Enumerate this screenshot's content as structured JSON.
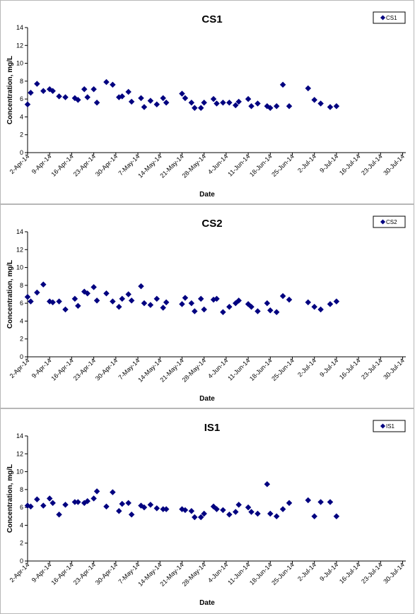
{
  "colors": {
    "marker": "#000080",
    "axis": "#000000"
  },
  "chart_data": [
    {
      "type": "scatter",
      "title": "CS1",
      "xlabel": "Date",
      "ylabel": "Concentration, mg/L",
      "legend": {
        "entries": [
          "CS1"
        ],
        "placement": "top-right"
      },
      "ylim": [
        0,
        14
      ],
      "yticks": [
        "0",
        "2",
        "4",
        "6",
        "8",
        "10",
        "12",
        "14"
      ],
      "xlim": [
        "2014-04-02",
        "2014-07-31"
      ],
      "xticks": [
        "2-Apr-14",
        "9-Apr-14",
        "16-Apr-14",
        "23-Apr-14",
        "30-Apr-14",
        "7-May-14",
        "14-May-14",
        "21-May-14",
        "28-May-14",
        "4-Jun-14",
        "11-Jun-14",
        "18-Jun-14",
        "25-Jun-14",
        "2-Jul-14",
        "9-Jul-14",
        "16-Jul-14",
        "23-Jul-14",
        "30-Jul-14"
      ],
      "grid": false,
      "series": [
        {
          "name": "CS1",
          "points": [
            {
              "x": "2014-04-02",
              "y": 5.4
            },
            {
              "x": "2014-04-03",
              "y": 6.7
            },
            {
              "x": "2014-04-05",
              "y": 7.7
            },
            {
              "x": "2014-04-07",
              "y": 6.9
            },
            {
              "x": "2014-04-09",
              "y": 7.1
            },
            {
              "x": "2014-04-10",
              "y": 6.9
            },
            {
              "x": "2014-04-12",
              "y": 6.3
            },
            {
              "x": "2014-04-14",
              "y": 6.2
            },
            {
              "x": "2014-04-17",
              "y": 6.1
            },
            {
              "x": "2014-04-18",
              "y": 5.9
            },
            {
              "x": "2014-04-20",
              "y": 7.1
            },
            {
              "x": "2014-04-21",
              "y": 6.2
            },
            {
              "x": "2014-04-23",
              "y": 7.1
            },
            {
              "x": "2014-04-24",
              "y": 5.6
            },
            {
              "x": "2014-04-27",
              "y": 7.9
            },
            {
              "x": "2014-04-29",
              "y": 7.6
            },
            {
              "x": "2014-05-01",
              "y": 6.2
            },
            {
              "x": "2014-05-02",
              "y": 6.3
            },
            {
              "x": "2014-05-04",
              "y": 6.8
            },
            {
              "x": "2014-05-05",
              "y": 5.7
            },
            {
              "x": "2014-05-08",
              "y": 6.1
            },
            {
              "x": "2014-05-09",
              "y": 5.1
            },
            {
              "x": "2014-05-11",
              "y": 5.8
            },
            {
              "x": "2014-05-13",
              "y": 5.4
            },
            {
              "x": "2014-05-15",
              "y": 6.1
            },
            {
              "x": "2014-05-16",
              "y": 5.6
            },
            {
              "x": "2014-05-21",
              "y": 6.6
            },
            {
              "x": "2014-05-22",
              "y": 6.1
            },
            {
              "x": "2014-05-24",
              "y": 5.6
            },
            {
              "x": "2014-05-25",
              "y": 5.0
            },
            {
              "x": "2014-05-27",
              "y": 5.0
            },
            {
              "x": "2014-05-28",
              "y": 5.6
            },
            {
              "x": "2014-05-31",
              "y": 6.0
            },
            {
              "x": "2014-06-01",
              "y": 5.5
            },
            {
              "x": "2014-06-03",
              "y": 5.6
            },
            {
              "x": "2014-06-05",
              "y": 5.6
            },
            {
              "x": "2014-06-07",
              "y": 5.3
            },
            {
              "x": "2014-06-08",
              "y": 5.7
            },
            {
              "x": "2014-06-11",
              "y": 6.0
            },
            {
              "x": "2014-06-12",
              "y": 5.2
            },
            {
              "x": "2014-06-14",
              "y": 5.5
            },
            {
              "x": "2014-06-17",
              "y": 5.2
            },
            {
              "x": "2014-06-18",
              "y": 5.0
            },
            {
              "x": "2014-06-20",
              "y": 5.2
            },
            {
              "x": "2014-06-22",
              "y": 7.6
            },
            {
              "x": "2014-06-24",
              "y": 5.2
            },
            {
              "x": "2014-06-30",
              "y": 7.2
            },
            {
              "x": "2014-07-02",
              "y": 5.9
            },
            {
              "x": "2014-07-04",
              "y": 5.5
            },
            {
              "x": "2014-07-07",
              "y": 5.1
            },
            {
              "x": "2014-07-09",
              "y": 5.2
            }
          ]
        }
      ]
    },
    {
      "type": "scatter",
      "title": "CS2",
      "xlabel": "Date",
      "ylabel": "Concentration, mg/L",
      "legend": {
        "entries": [
          "CS2"
        ],
        "placement": "top-right"
      },
      "ylim": [
        0,
        14
      ],
      "yticks": [
        "0",
        "2",
        "4",
        "6",
        "8",
        "10",
        "12",
        "14"
      ],
      "xlim": [
        "2014-04-02",
        "2014-07-31"
      ],
      "xticks": [
        "2-Apr-14",
        "9-Apr-14",
        "16-Apr-14",
        "23-Apr-14",
        "30-Apr-14",
        "7-May-14",
        "14-May-14",
        "21-May-14",
        "28-May-14",
        "4-Jun-14",
        "11-Jun-14",
        "18-Jun-14",
        "25-Jun-14",
        "2-Jul-14",
        "9-Jul-14",
        "16-Jul-14",
        "23-Jul-14",
        "30-Jul-14"
      ],
      "grid": false,
      "series": [
        {
          "name": "CS2",
          "points": [
            {
              "x": "2014-04-02",
              "y": 6.7
            },
            {
              "x": "2014-04-03",
              "y": 6.2
            },
            {
              "x": "2014-04-05",
              "y": 7.2
            },
            {
              "x": "2014-04-07",
              "y": 8.1
            },
            {
              "x": "2014-04-09",
              "y": 6.2
            },
            {
              "x": "2014-04-10",
              "y": 6.1
            },
            {
              "x": "2014-04-12",
              "y": 6.2
            },
            {
              "x": "2014-04-14",
              "y": 5.3
            },
            {
              "x": "2014-04-17",
              "y": 6.5
            },
            {
              "x": "2014-04-18",
              "y": 5.7
            },
            {
              "x": "2014-04-20",
              "y": 7.3
            },
            {
              "x": "2014-04-21",
              "y": 7.1
            },
            {
              "x": "2014-04-23",
              "y": 7.8
            },
            {
              "x": "2014-04-24",
              "y": 6.3
            },
            {
              "x": "2014-04-27",
              "y": 7.1
            },
            {
              "x": "2014-04-29",
              "y": 6.2
            },
            {
              "x": "2014-05-01",
              "y": 5.6
            },
            {
              "x": "2014-05-02",
              "y": 6.5
            },
            {
              "x": "2014-05-04",
              "y": 7.0
            },
            {
              "x": "2014-05-05",
              "y": 6.3
            },
            {
              "x": "2014-05-08",
              "y": 7.9
            },
            {
              "x": "2014-05-09",
              "y": 6.0
            },
            {
              "x": "2014-05-11",
              "y": 5.8
            },
            {
              "x": "2014-05-13",
              "y": 6.5
            },
            {
              "x": "2014-05-15",
              "y": 5.5
            },
            {
              "x": "2014-05-16",
              "y": 6.1
            },
            {
              "x": "2014-05-21",
              "y": 5.9
            },
            {
              "x": "2014-05-22",
              "y": 6.6
            },
            {
              "x": "2014-05-24",
              "y": 6.0
            },
            {
              "x": "2014-05-25",
              "y": 5.1
            },
            {
              "x": "2014-05-27",
              "y": 6.5
            },
            {
              "x": "2014-05-28",
              "y": 5.3
            },
            {
              "x": "2014-05-31",
              "y": 6.4
            },
            {
              "x": "2014-06-01",
              "y": 6.5
            },
            {
              "x": "2014-06-03",
              "y": 5.0
            },
            {
              "x": "2014-06-05",
              "y": 5.6
            },
            {
              "x": "2014-06-07",
              "y": 6.0
            },
            {
              "x": "2014-06-08",
              "y": 6.3
            },
            {
              "x": "2014-06-11",
              "y": 5.9
            },
            {
              "x": "2014-06-12",
              "y": 5.6
            },
            {
              "x": "2014-06-14",
              "y": 5.1
            },
            {
              "x": "2014-06-17",
              "y": 6.0
            },
            {
              "x": "2014-06-18",
              "y": 5.2
            },
            {
              "x": "2014-06-20",
              "y": 5.0
            },
            {
              "x": "2014-06-22",
              "y": 6.8
            },
            {
              "x": "2014-06-24",
              "y": 6.4
            },
            {
              "x": "2014-06-30",
              "y": 6.1
            },
            {
              "x": "2014-07-02",
              "y": 5.6
            },
            {
              "x": "2014-07-04",
              "y": 5.3
            },
            {
              "x": "2014-07-07",
              "y": 5.9
            },
            {
              "x": "2014-07-09",
              "y": 6.2
            }
          ]
        }
      ]
    },
    {
      "type": "scatter",
      "title": "IS1",
      "xlabel": "Date",
      "ylabel": "Concentration, mg/L",
      "legend": {
        "entries": [
          "IS1"
        ],
        "placement": "top-right"
      },
      "ylim": [
        0,
        14
      ],
      "yticks": [
        "0",
        "2",
        "4",
        "6",
        "8",
        "10",
        "12",
        "14"
      ],
      "xlim": [
        "2014-04-02",
        "2014-07-31"
      ],
      "xticks": [
        "2-Apr-14",
        "9-Apr-14",
        "16-Apr-14",
        "23-Apr-14",
        "30-Apr-14",
        "7-May-14",
        "14-May-14",
        "21-May-14",
        "28-May-14",
        "4-Jun-14",
        "11-Jun-14",
        "18-Jun-14",
        "25-Jun-14",
        "2-Jul-14",
        "9-Jul-14",
        "16-Jul-14",
        "23-Jul-14",
        "30-Jul-14"
      ],
      "grid": false,
      "series": [
        {
          "name": "IS1",
          "points": [
            {
              "x": "2014-04-02",
              "y": 6.2
            },
            {
              "x": "2014-04-03",
              "y": 6.1
            },
            {
              "x": "2014-04-05",
              "y": 6.9
            },
            {
              "x": "2014-04-07",
              "y": 6.2
            },
            {
              "x": "2014-04-09",
              "y": 7.0
            },
            {
              "x": "2014-04-10",
              "y": 6.5
            },
            {
              "x": "2014-04-12",
              "y": 5.2
            },
            {
              "x": "2014-04-14",
              "y": 6.3
            },
            {
              "x": "2014-04-17",
              "y": 6.6
            },
            {
              "x": "2014-04-18",
              "y": 6.6
            },
            {
              "x": "2014-04-20",
              "y": 6.5
            },
            {
              "x": "2014-04-21",
              "y": 6.7
            },
            {
              "x": "2014-04-23",
              "y": 7.0
            },
            {
              "x": "2014-04-24",
              "y": 7.8
            },
            {
              "x": "2014-04-27",
              "y": 6.1
            },
            {
              "x": "2014-04-29",
              "y": 7.7
            },
            {
              "x": "2014-05-01",
              "y": 5.6
            },
            {
              "x": "2014-05-02",
              "y": 6.4
            },
            {
              "x": "2014-05-04",
              "y": 6.5
            },
            {
              "x": "2014-05-05",
              "y": 5.2
            },
            {
              "x": "2014-05-08",
              "y": 6.2
            },
            {
              "x": "2014-05-09",
              "y": 6.0
            },
            {
              "x": "2014-05-11",
              "y": 6.3
            },
            {
              "x": "2014-05-13",
              "y": 5.9
            },
            {
              "x": "2014-05-15",
              "y": 5.8
            },
            {
              "x": "2014-05-16",
              "y": 5.8
            },
            {
              "x": "2014-05-21",
              "y": 5.8
            },
            {
              "x": "2014-05-22",
              "y": 5.7
            },
            {
              "x": "2014-05-24",
              "y": 5.6
            },
            {
              "x": "2014-05-25",
              "y": 4.9
            },
            {
              "x": "2014-05-27",
              "y": 4.9
            },
            {
              "x": "2014-05-28",
              "y": 5.3
            },
            {
              "x": "2014-05-31",
              "y": 6.1
            },
            {
              "x": "2014-06-01",
              "y": 5.8
            },
            {
              "x": "2014-06-03",
              "y": 5.7
            },
            {
              "x": "2014-06-05",
              "y": 5.2
            },
            {
              "x": "2014-06-07",
              "y": 5.5
            },
            {
              "x": "2014-06-08",
              "y": 6.3
            },
            {
              "x": "2014-06-11",
              "y": 6.0
            },
            {
              "x": "2014-06-12",
              "y": 5.5
            },
            {
              "x": "2014-06-14",
              "y": 5.3
            },
            {
              "x": "2014-06-17",
              "y": 8.6
            },
            {
              "x": "2014-06-18",
              "y": 5.3
            },
            {
              "x": "2014-06-20",
              "y": 5.0
            },
            {
              "x": "2014-06-22",
              "y": 5.8
            },
            {
              "x": "2014-06-24",
              "y": 6.5
            },
            {
              "x": "2014-06-30",
              "y": 6.8
            },
            {
              "x": "2014-07-02",
              "y": 5.0
            },
            {
              "x": "2014-07-04",
              "y": 6.6
            },
            {
              "x": "2014-07-07",
              "y": 6.6
            },
            {
              "x": "2014-07-09",
              "y": 5.0
            }
          ]
        }
      ]
    }
  ]
}
